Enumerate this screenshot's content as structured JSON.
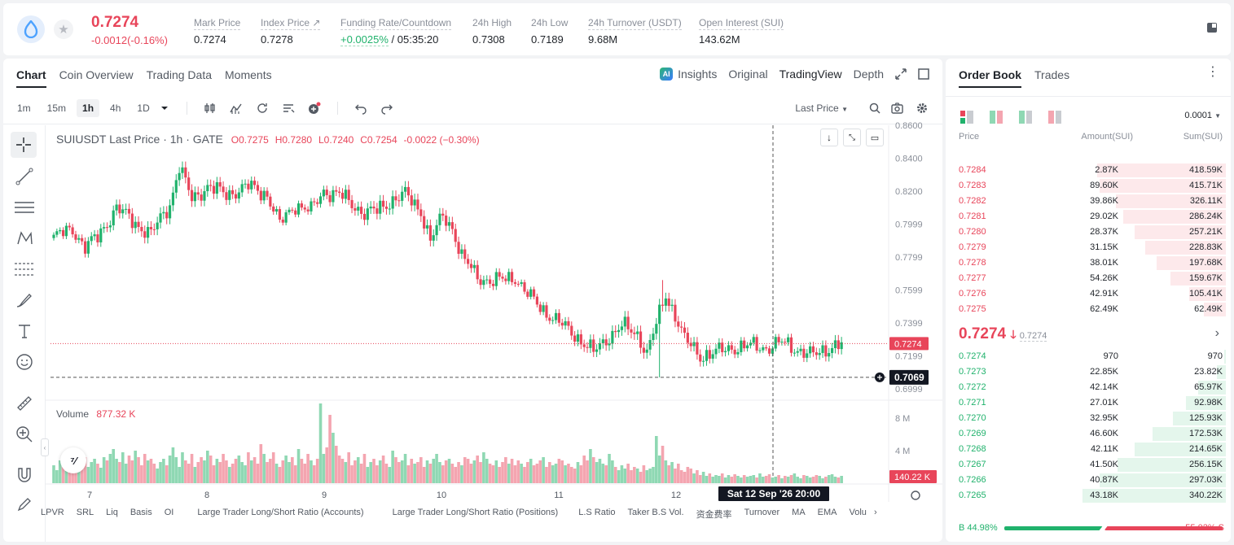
{
  "header": {
    "last_price": "0.7274",
    "change": "-0.0012(-0.16%)",
    "stats": [
      {
        "label": "Mark Price",
        "value": "0.7274"
      },
      {
        "label": "Index Price ↗",
        "value": "0.7278"
      },
      {
        "label": "Funding Rate/Countdown",
        "value_green": "+0.0025%",
        "value": " / 05:35:20"
      },
      {
        "label": "24h High",
        "value": "0.7308"
      },
      {
        "label": "24h Low",
        "value": "0.7189"
      },
      {
        "label": "24h Turnover (USDT)",
        "value": "9.68M"
      },
      {
        "label": "Open Interest (SUI)",
        "value": "143.62M"
      }
    ]
  },
  "chart_tabs": [
    "Chart",
    "Coin Overview",
    "Trading Data",
    "Moments"
  ],
  "chart_views": {
    "insights": "Insights",
    "original": "Original",
    "tradingview": "TradingView",
    "depth": "Depth"
  },
  "timeframes": [
    "1m",
    "15m",
    "1h",
    "4h",
    "1D"
  ],
  "price_type": "Last Price",
  "legend": {
    "symbol": "SUIUSDT Last Price · 1h · GATE",
    "o": "O0.7275",
    "h": "H0.7280",
    "l": "L0.7240",
    "c": "C0.7254",
    "chg": "-0.0022 (−0.30%)"
  },
  "volume_legend": {
    "label": "Volume",
    "value": "877.32 K"
  },
  "colors": {
    "up": "#20b26c",
    "down": "#e8455a",
    "up_vol": "#8fd8b3",
    "down_vol": "#f4a5b0"
  },
  "chart_data": {
    "type": "candlestick",
    "y_ticks": [
      "0.8600",
      "0.8400",
      "0.8200",
      "0.7999",
      "0.7799",
      "0.7599",
      "0.7399",
      "0.7199",
      "0.6999"
    ],
    "ylim": [
      0.695,
      0.86
    ],
    "x_ticks": [
      "7",
      "8",
      "9",
      "10",
      "11",
      "12"
    ],
    "volume_ticks": [
      "8 M",
      "4 M"
    ],
    "volume_max_m": 10,
    "last_price_label": "0.7274",
    "crosshair_price": "0.7069",
    "crosshair_time": "Sat 12 Sep '26   20:00",
    "crosshair_volume": "140.22 K",
    "anchors": [
      [
        0,
        0.792
      ],
      [
        6,
        0.797
      ],
      [
        10,
        0.786
      ],
      [
        14,
        0.792
      ],
      [
        20,
        0.81
      ],
      [
        27,
        0.799
      ],
      [
        31,
        0.794
      ],
      [
        37,
        0.812
      ],
      [
        40,
        0.835
      ],
      [
        44,
        0.815
      ],
      [
        49,
        0.823
      ],
      [
        55,
        0.818
      ],
      [
        62,
        0.823
      ],
      [
        68,
        0.818
      ],
      [
        72,
        0.8
      ],
      [
        77,
        0.812
      ],
      [
        82,
        0.808
      ],
      [
        86,
        0.82
      ],
      [
        91,
        0.818
      ],
      [
        95,
        0.812
      ],
      [
        99,
        0.807
      ],
      [
        103,
        0.808
      ],
      [
        108,
        0.815
      ],
      [
        112,
        0.818
      ],
      [
        117,
        0.808
      ],
      [
        120,
        0.79
      ],
      [
        124,
        0.805
      ],
      [
        127,
        0.798
      ],
      [
        130,
        0.78
      ],
      [
        135,
        0.768
      ],
      [
        140,
        0.765
      ],
      [
        147,
        0.768
      ],
      [
        151,
        0.757
      ],
      [
        156,
        0.748
      ],
      [
        161,
        0.74
      ],
      [
        166,
        0.733
      ],
      [
        172,
        0.722
      ],
      [
        177,
        0.732
      ],
      [
        181,
        0.738
      ],
      [
        186,
        0.733
      ],
      [
        189,
        0.722
      ],
      [
        193,
        0.745
      ],
      [
        195,
        0.757
      ],
      [
        198,
        0.745
      ],
      [
        201,
        0.73
      ],
      [
        206,
        0.72
      ],
      [
        211,
        0.722
      ],
      [
        216,
        0.725
      ],
      [
        222,
        0.726
      ],
      [
        227,
        0.725
      ],
      [
        232,
        0.728
      ],
      [
        237,
        0.724
      ],
      [
        242,
        0.72
      ],
      [
        248,
        0.726
      ],
      [
        251,
        0.727
      ]
    ],
    "volumes_m": [
      2.2,
      1.6,
      2.8,
      2.0,
      1.5,
      3.0,
      2.4,
      1.8,
      2.2,
      2.8,
      3.2,
      2.0,
      2.6,
      3.0,
      2.4,
      1.9,
      3.2,
      2.8,
      3.6,
      4.2,
      3.0,
      2.6,
      3.8,
      2.4,
      3.4,
      2.8,
      4.0,
      3.2,
      2.2,
      3.6,
      2.8,
      3.0,
      2.4,
      1.8,
      2.6,
      3.0,
      2.2,
      3.4,
      4.4,
      3.2,
      2.0,
      3.8,
      2.8,
      2.4,
      3.6,
      2.0,
      2.6,
      3.2,
      2.8,
      4.0,
      3.4,
      2.2,
      3.0,
      2.6,
      3.6,
      2.8,
      2.0,
      2.4,
      3.0,
      3.4,
      2.6,
      2.2,
      3.8,
      2.8,
      3.2,
      2.4,
      4.8,
      3.6,
      2.6,
      3.0,
      3.8,
      2.4,
      2.0,
      2.8,
      3.4,
      2.6,
      3.2,
      2.2,
      4.2,
      3.0,
      2.4,
      3.6,
      2.8,
      2.2,
      3.0,
      9.8,
      3.6,
      4.4,
      8.4,
      6.2,
      4.6,
      3.4,
      3.0,
      2.6,
      3.8,
      2.2,
      2.8,
      3.2,
      2.4,
      3.6,
      2.0,
      2.6,
      3.0,
      2.2,
      2.8,
      3.4,
      2.4,
      2.0,
      4.0,
      3.2,
      2.6,
      2.8,
      3.6,
      2.2,
      3.0,
      2.4,
      2.6,
      3.2,
      2.0,
      2.8,
      2.4,
      3.0,
      3.6,
      2.6,
      2.2,
      2.8,
      3.0,
      2.4,
      2.0,
      2.6,
      2.2,
      3.2,
      3.0,
      2.4,
      2.8,
      3.4,
      2.6,
      3.8,
      3.0,
      2.4,
      2.2,
      2.8,
      2.0,
      2.6,
      3.2,
      2.4,
      3.0,
      2.2,
      2.8,
      2.4,
      2.0,
      2.6,
      3.0,
      2.2,
      2.4,
      2.8,
      3.2,
      2.0,
      2.6,
      2.2,
      2.4,
      3.0,
      2.8,
      2.2,
      2.4,
      2.0,
      1.8,
      2.6,
      2.2,
      3.4,
      2.8,
      4.2,
      3.2,
      2.6,
      3.0,
      2.4,
      2.2,
      3.6,
      2.8,
      2.0,
      1.6,
      2.2,
      1.8,
      2.4,
      1.6,
      2.0,
      1.8,
      1.4,
      2.2,
      1.6,
      1.8,
      2.0,
      5.8,
      3.4,
      4.6,
      2.8,
      2.2,
      2.6,
      1.8,
      2.4,
      1.6,
      1.4,
      2.0,
      1.8,
      1.2,
      1.6,
      1.0,
      1.4,
      0.9,
      1.2,
      0.8,
      1.0,
      0.9,
      1.2,
      0.7,
      1.0,
      0.8,
      1.1,
      0.9,
      0.7,
      1.0,
      0.8,
      0.9,
      1.0,
      0.7,
      1.2,
      0.8,
      0.9,
      1.1,
      0.7,
      0.8,
      1.0,
      0.6,
      0.9,
      0.8,
      1.0,
      1.2,
      0.8,
      0.6,
      1.0,
      0.9,
      0.7,
      0.8,
      1.0,
      0.9,
      0.6,
      0.8,
      1.0,
      1.1,
      0.8,
      0.7,
      0.9
    ]
  },
  "indicators": [
    "LPVR",
    "SRL",
    "Liq",
    "Basis",
    "OI",
    "Large Trader Long/Short Ratio (Accounts)",
    "Large Trader Long/Short Ratio (Positions)",
    "L.S Ratio",
    "Taker B.S Vol.",
    "资金费率",
    "Turnover",
    "MA",
    "EMA",
    "Volu"
  ],
  "orderbook": {
    "tabs": [
      "Order Book",
      "Trades"
    ],
    "precision": "0.0001",
    "columns": [
      "Price",
      "Amount(SUI)",
      "Sum(SUI)"
    ],
    "asks": [
      {
        "price": "0.7284",
        "amount": "2.87K",
        "sum": "418.59K",
        "depth": 0.88
      },
      {
        "price": "0.7283",
        "amount": "89.60K",
        "sum": "415.71K",
        "depth": 0.86
      },
      {
        "price": "0.7282",
        "amount": "39.86K",
        "sum": "326.11K",
        "depth": 0.75
      },
      {
        "price": "0.7281",
        "amount": "29.02K",
        "sum": "286.24K",
        "depth": 0.7
      },
      {
        "price": "0.7280",
        "amount": "28.37K",
        "sum": "257.21K",
        "depth": 0.62
      },
      {
        "price": "0.7279",
        "amount": "31.15K",
        "sum": "228.83K",
        "depth": 0.55
      },
      {
        "price": "0.7278",
        "amount": "38.01K",
        "sum": "197.68K",
        "depth": 0.47
      },
      {
        "price": "0.7277",
        "amount": "54.26K",
        "sum": "159.67K",
        "depth": 0.38
      },
      {
        "price": "0.7276",
        "amount": "42.91K",
        "sum": "105.41K",
        "depth": 0.25
      },
      {
        "price": "0.7275",
        "amount": "62.49K",
        "sum": "62.49K",
        "depth": 0.15
      }
    ],
    "mid_price": "0.7274",
    "mid_mark": "0.7274",
    "bids": [
      {
        "price": "0.7274",
        "amount": "970",
        "sum": "970",
        "depth": 0.01
      },
      {
        "price": "0.7273",
        "amount": "22.85K",
        "sum": "23.82K",
        "depth": 0.06
      },
      {
        "price": "0.7272",
        "amount": "42.14K",
        "sum": "65.97K",
        "depth": 0.19
      },
      {
        "price": "0.7271",
        "amount": "27.01K",
        "sum": "92.98K",
        "depth": 0.27
      },
      {
        "price": "0.7270",
        "amount": "32.95K",
        "sum": "125.93K",
        "depth": 0.36
      },
      {
        "price": "0.7269",
        "amount": "46.60K",
        "sum": "172.53K",
        "depth": 0.5
      },
      {
        "price": "0.7268",
        "amount": "42.11K",
        "sum": "214.65K",
        "depth": 0.62
      },
      {
        "price": "0.7267",
        "amount": "41.50K",
        "sum": "256.15K",
        "depth": 0.74
      },
      {
        "price": "0.7266",
        "amount": "40.87K",
        "sum": "297.03K",
        "depth": 0.86
      },
      {
        "price": "0.7265",
        "amount": "43.18K",
        "sum": "340.22K",
        "depth": 0.98
      }
    ],
    "buy_ratio": "B 44.98%",
    "sell_ratio": "55.02% S",
    "buy_fraction": 0.4498
  }
}
